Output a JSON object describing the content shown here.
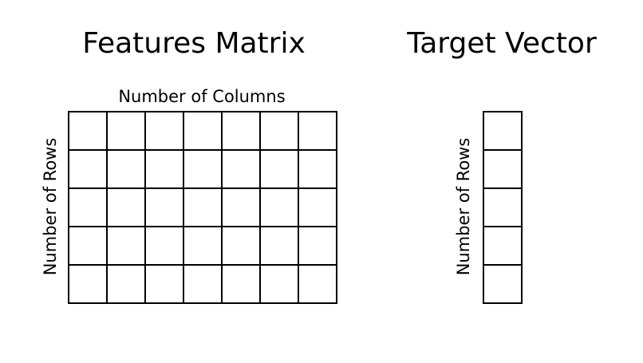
{
  "features_matrix": {
    "title": "Features Matrix",
    "columns_label": "Number of Columns",
    "rows_label": "Number of Rows",
    "rows": 5,
    "columns": 7
  },
  "target_vector": {
    "title": "Target Vector",
    "rows_label": "Number of Rows",
    "rows": 5,
    "columns": 1
  },
  "colors": {
    "line": "#000000",
    "background": "#ffffff"
  }
}
